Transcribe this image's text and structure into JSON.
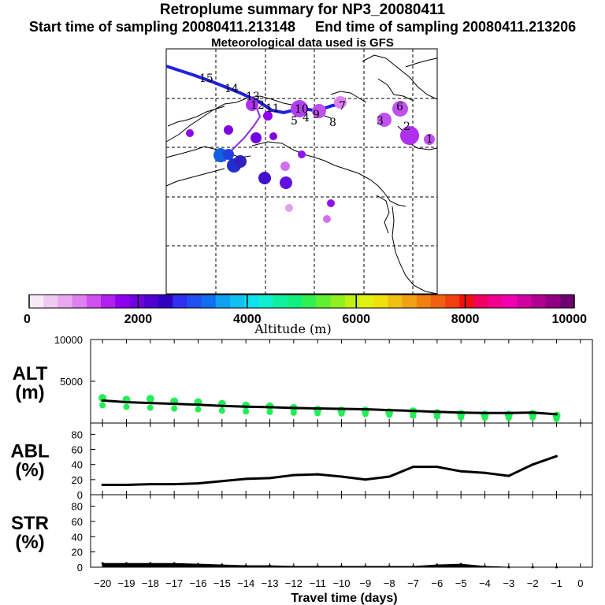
{
  "header": {
    "title": "Retroplume summary for NP3_20080411",
    "start_label": "Start time of sampling 20080411.213148",
    "end_label": "End time of sampling 20080411.213206",
    "met_label": "Meteorological data used is GFS"
  },
  "map": {
    "day_markers": [
      "15",
      "14",
      "13",
      "12",
      "11",
      "10",
      "9",
      "8",
      "7",
      "6",
      "5",
      "4",
      "3",
      "2",
      "1"
    ]
  },
  "colorbar": {
    "ticks": [
      "0",
      "2000",
      "4000",
      "6000",
      "8000",
      "10000"
    ],
    "label": "Altitude (m)",
    "colors": [
      "#f8e8f8",
      "#f0c8f0",
      "#e8a8f0",
      "#e080f0",
      "#d050f0",
      "#b020f0",
      "#9000f0",
      "#7000e0",
      "#5000d0",
      "#3000c0",
      "#3030f0",
      "#2050f0",
      "#1070f0",
      "#10a0f0",
      "#10c0f0",
      "#10e0f0",
      "#10f0d0",
      "#10f0a0",
      "#10f080",
      "#30f050",
      "#60f030",
      "#90f020",
      "#c0f010",
      "#e0f010",
      "#f0e010",
      "#f0c010",
      "#f0a010",
      "#f08010",
      "#f06010",
      "#f04010",
      "#f01010",
      "#f00060",
      "#f00090",
      "#f000b0",
      "#d000a0",
      "#b00090",
      "#900080",
      "#700070"
    ]
  },
  "chart_data": [
    {
      "type": "line",
      "name": "ALT",
      "ylabel_top": "ALT",
      "ylabel_bottom": "(m)",
      "x": [
        -20,
        -19,
        -18,
        -17,
        -16,
        -15,
        -14,
        -13,
        -12,
        -11,
        -10,
        -9,
        -8,
        -7,
        -6,
        -5,
        -4,
        -3,
        -2,
        -1
      ],
      "values": [
        2700,
        2500,
        2400,
        2300,
        2200,
        2050,
        1950,
        1900,
        1800,
        1750,
        1700,
        1650,
        1550,
        1450,
        1350,
        1250,
        1200,
        1200,
        1250,
        1050
      ],
      "scatter_y": [
        3000,
        2800,
        2900,
        2600,
        2500,
        2300,
        2100,
        2000,
        1800,
        1600,
        1500,
        1500,
        1300,
        1400,
        1200,
        1100,
        1000,
        1000,
        1100,
        900
      ],
      "ylim": [
        0,
        10000
      ],
      "ytick_labels": [
        "10000",
        "5000"
      ],
      "ytick_values": [
        10000,
        5000
      ],
      "color": "#000000",
      "scatter_color": "#22ee55"
    },
    {
      "type": "line",
      "name": "ABL",
      "ylabel_top": "ABL",
      "ylabel_bottom": "(%)",
      "x": [
        -20,
        -19,
        -18,
        -17,
        -16,
        -15,
        -14,
        -13,
        -12,
        -11,
        -10,
        -9,
        -8,
        -7,
        -6,
        -5,
        -4,
        -3,
        -2,
        -1
      ],
      "values": [
        13,
        13,
        14,
        14,
        15,
        18,
        21,
        22,
        26,
        27,
        24,
        20,
        24,
        37,
        37,
        31,
        29,
        25,
        40,
        51
      ],
      "ylim": [
        0,
        95
      ],
      "ytick_labels": [
        "80",
        "60",
        "40",
        "20",
        "0"
      ],
      "ytick_values": [
        80,
        60,
        40,
        20,
        0
      ],
      "color": "#000000"
    },
    {
      "type": "area",
      "name": "STR",
      "ylabel_top": "STR",
      "ylabel_bottom": "(%)",
      "x": [
        -20,
        -19,
        -18,
        -17,
        -16,
        -15,
        -14,
        -13,
        -12,
        -11,
        -10,
        -9,
        -8,
        -7,
        -6,
        -5,
        -4,
        -3,
        -2,
        -1
      ],
      "values": [
        5,
        5,
        5,
        5,
        4,
        3,
        2,
        2,
        1,
        1,
        1,
        1,
        1,
        1,
        3,
        4,
        1,
        0,
        0,
        0
      ],
      "ylim": [
        0,
        95
      ],
      "ytick_labels": [
        "80",
        "60",
        "40",
        "20",
        "0"
      ],
      "ytick_values": [
        80,
        60,
        40,
        20,
        0
      ],
      "color": "#000000"
    }
  ],
  "x_axis": {
    "label": "Travel time (days)",
    "tick_labels": [
      "−20",
      "−19",
      "−18",
      "−17",
      "−16",
      "−15",
      "−14",
      "−13",
      "−12",
      "−11",
      "−10",
      "−9",
      "−8",
      "−7",
      "−6",
      "−5",
      "−4",
      "−3",
      "−2",
      "−1",
      "0"
    ],
    "tick_values": [
      -20,
      -19,
      -18,
      -17,
      -16,
      -15,
      -14,
      -13,
      -12,
      -11,
      -10,
      -9,
      -8,
      -7,
      -6,
      -5,
      -4,
      -3,
      -2,
      -1,
      0
    ]
  }
}
